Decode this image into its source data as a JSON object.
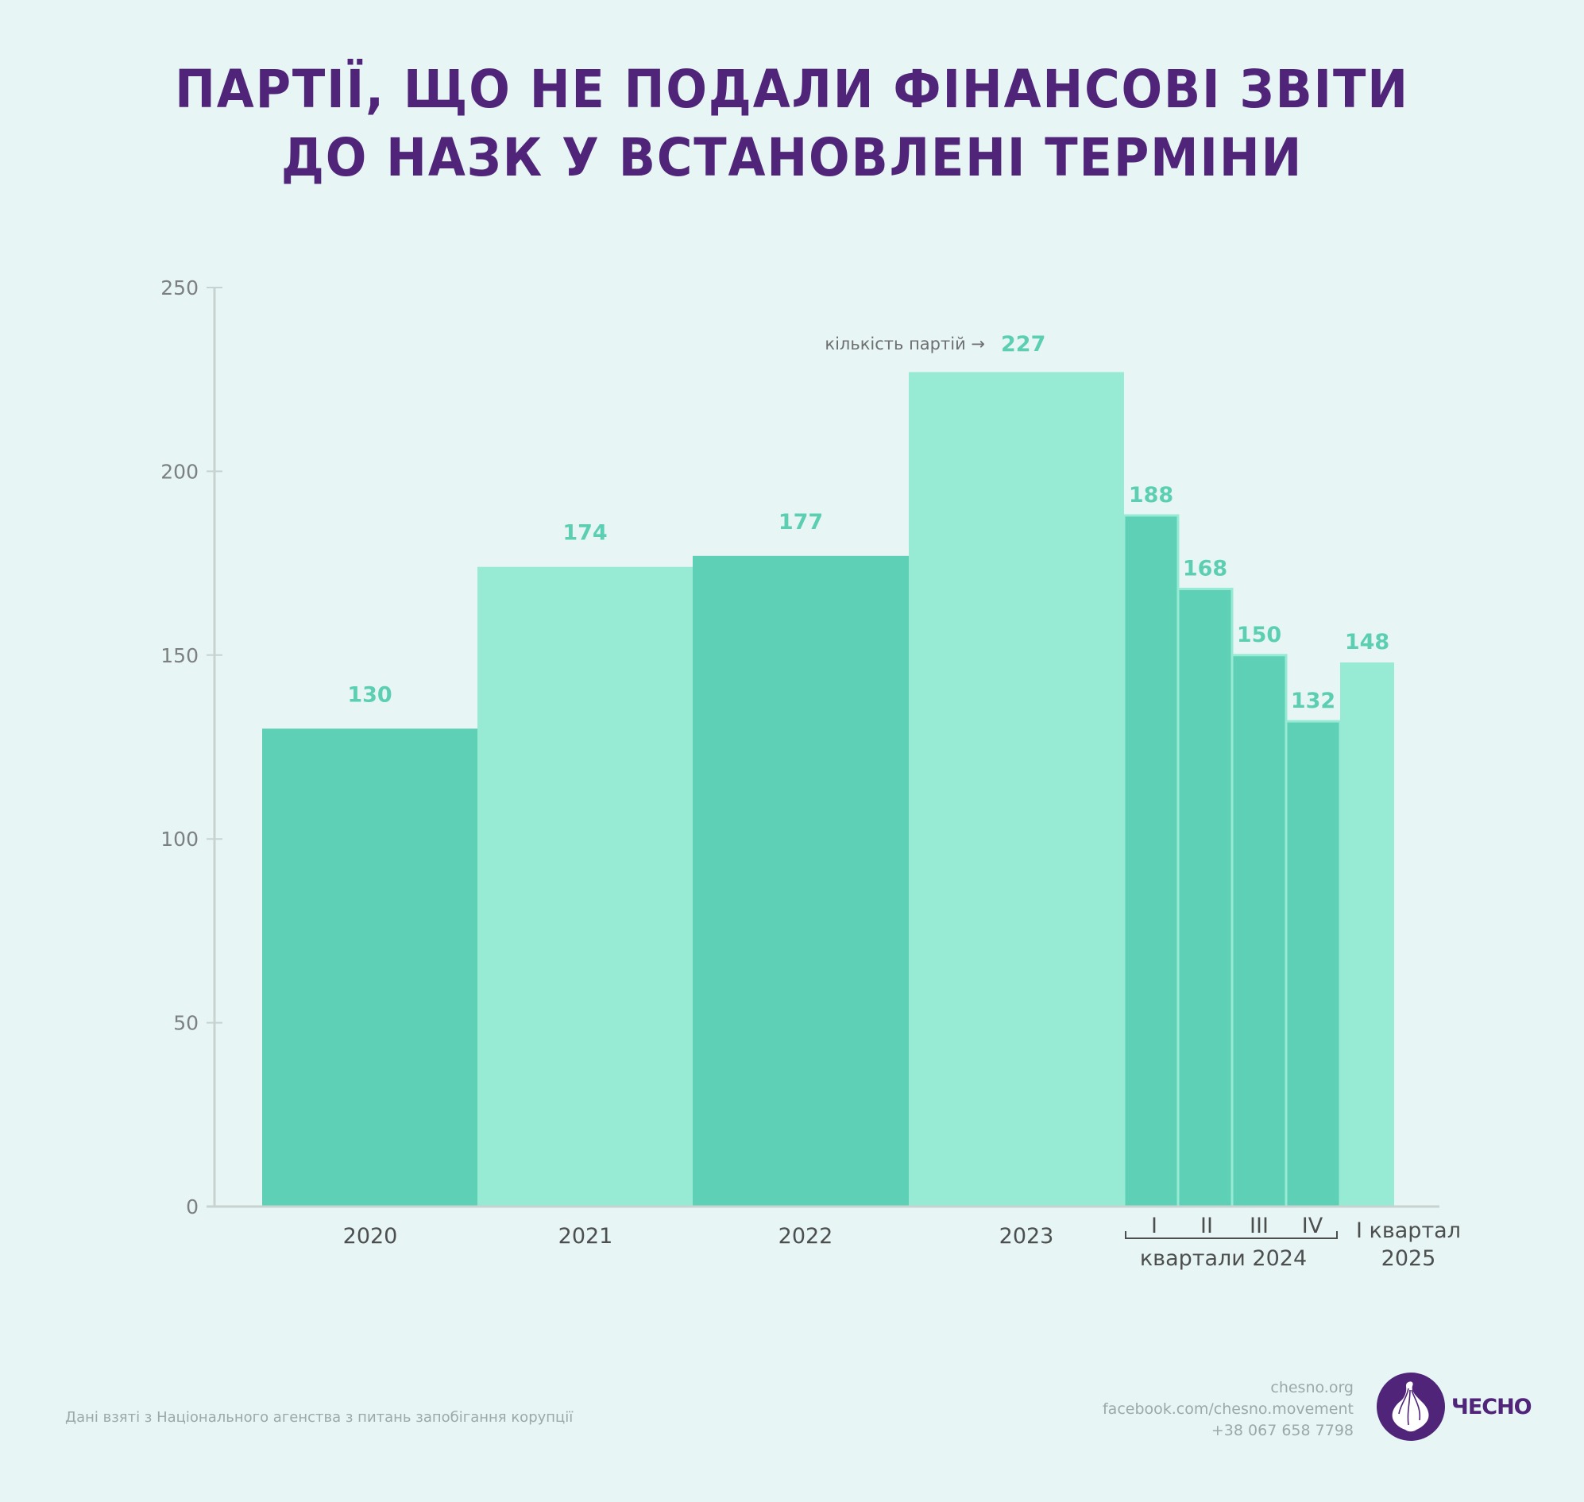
{
  "title": {
    "line1": "ПАРТІЇ, ЩО НЕ ПОДАЛИ ФІНАНСОВІ ЗВІТИ",
    "line2": "ДО НАЗК У ВСТАНОВЛЕНІ ТЕРМІНИ"
  },
  "chart_data": {
    "type": "bar",
    "title": "ПАРТІЇ, ЩО НЕ ПОДАЛИ ФІНАНСОВІ ЗВІТИ ДО НАЗК У ВСТАНОВЛЕНІ ТЕРМІНИ",
    "xlabel": "",
    "ylabel": "",
    "ylim": [
      0,
      250
    ],
    "yticks": [
      "0",
      "50",
      "100",
      "150",
      "200",
      "250"
    ],
    "ytick_values": [
      0,
      50,
      100,
      150,
      200,
      250
    ],
    "grid": false,
    "categories": [
      "2020",
      "2021",
      "2022",
      "2023",
      "I",
      "II",
      "III",
      "IV",
      "I квартал 2025"
    ],
    "values": [
      130,
      174,
      177,
      227,
      188,
      168,
      150,
      132,
      148
    ],
    "value_labels": [
      "130",
      "174",
      "177",
      "227",
      "188",
      "168",
      "150",
      "132",
      "148"
    ],
    "bar_tones": [
      "dark",
      "light",
      "dark",
      "light",
      "dark",
      "dark",
      "dark",
      "dark",
      "light"
    ],
    "x_tick_labels": {
      "years": [
        "2020",
        "2021",
        "2022",
        "2023"
      ],
      "quarters_2024": [
        "I",
        "II",
        "III",
        "IV"
      ],
      "quarters_2024_group": "квартали 2024",
      "q1_2025_line1": "I квартал",
      "q1_2025_line2": "2025"
    },
    "annotation": "кількість партій →",
    "colors": {
      "dark": "#5dd0b5",
      "light": "#97ead3",
      "value_label": "#5ccfb2",
      "axis": "#c7d3d1"
    }
  },
  "footer": {
    "source": "Дані взяті з Національного агенства з питань запобігання корупції",
    "website": "chesno.org",
    "facebook": "facebook.com/chesno.movement",
    "phone": "+38 067 658 7798",
    "logo_text": "ЧЕСНО"
  },
  "colors": {
    "background": "#e7f5f4",
    "title": "#4f2479",
    "logo": "#4f2479"
  }
}
